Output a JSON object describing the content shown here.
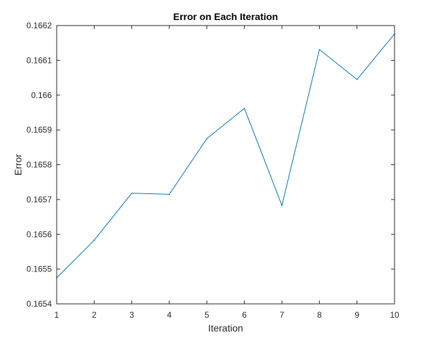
{
  "chart_data": {
    "type": "line",
    "title": "Error on Each Iteration",
    "xlabel": "Iteration",
    "ylabel": "Error",
    "xlim": [
      1,
      10
    ],
    "ylim": [
      0.1654,
      0.1662
    ],
    "xticks": [
      1,
      2,
      3,
      4,
      5,
      6,
      7,
      8,
      9,
      10
    ],
    "yticks": [
      0.1654,
      0.1655,
      0.1656,
      0.1657,
      0.1658,
      0.1659,
      0.166,
      0.1661,
      0.1662
    ],
    "xtick_labels": [
      "1",
      "2",
      "3",
      "4",
      "5",
      "6",
      "7",
      "8",
      "9",
      "10"
    ],
    "ytick_labels": [
      "0.1654",
      "0.1655",
      "0.1656",
      "0.1657",
      "0.1658",
      "0.1659",
      "0.166",
      "0.1661",
      "0.1662"
    ],
    "grid": false,
    "series": [
      {
        "color": "#0072BD",
        "x": [
          1,
          2,
          3,
          4,
          5,
          6,
          7,
          8,
          9,
          10
        ],
        "y": [
          0.165475,
          0.165583,
          0.165718,
          0.165715,
          0.165875,
          0.165962,
          0.165683,
          0.166131,
          0.166045,
          0.166176
        ]
      }
    ]
  }
}
